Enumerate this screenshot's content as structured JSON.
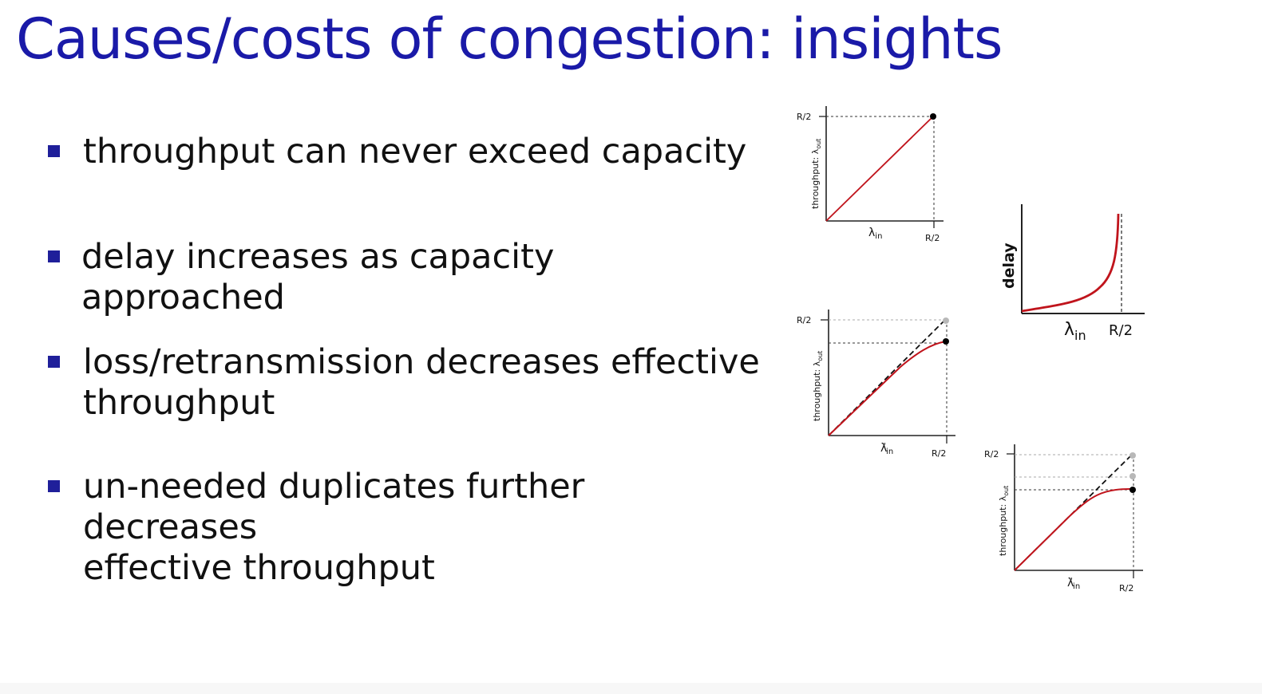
{
  "slide": {
    "title": "Causes/costs of congestion: insights",
    "bullets": [
      {
        "lines": [
          "throughput can never exceed capacity"
        ]
      },
      {
        "lines": [
          "delay increases as capacity approached"
        ]
      },
      {
        "lines": [
          "loss/retransmission decreases effective",
          "throughput"
        ]
      },
      {
        "lines": [
          "un-needed duplicates further decreases",
          "effective throughput"
        ]
      }
    ]
  },
  "plots": {
    "throughput_basic": {
      "y_axis_label": "throughput: λ",
      "y_axis_subscript": "out",
      "y_tick": "R/2",
      "x_axis_label": "λ",
      "x_axis_subscript": "in",
      "x_tick": "R/2"
    },
    "delay": {
      "y_axis_label": "delay",
      "x_axis_label": "λ",
      "x_axis_subscript": "in",
      "x_tick": "R/2"
    },
    "throughput_loss": {
      "y_axis_label": "throughput: λ",
      "y_axis_subscript": "out",
      "y_tick": "R/2",
      "x_axis_label": "λ",
      "x_axis_prime": "'",
      "x_axis_subscript": "in",
      "x_tick": "R/2"
    },
    "throughput_duplicates": {
      "y_axis_label": "throughput: λ",
      "y_axis_subscript": "out",
      "y_tick": "R/2",
      "x_axis_label": "λ",
      "x_axis_prime": "'",
      "x_axis_subscript": "in",
      "x_tick": "R/2"
    }
  },
  "colors": {
    "title": "#1a1aa8",
    "bullet": "#1f1f9a",
    "curve": "#c0141c",
    "grey_point": "#b8b8b8"
  }
}
